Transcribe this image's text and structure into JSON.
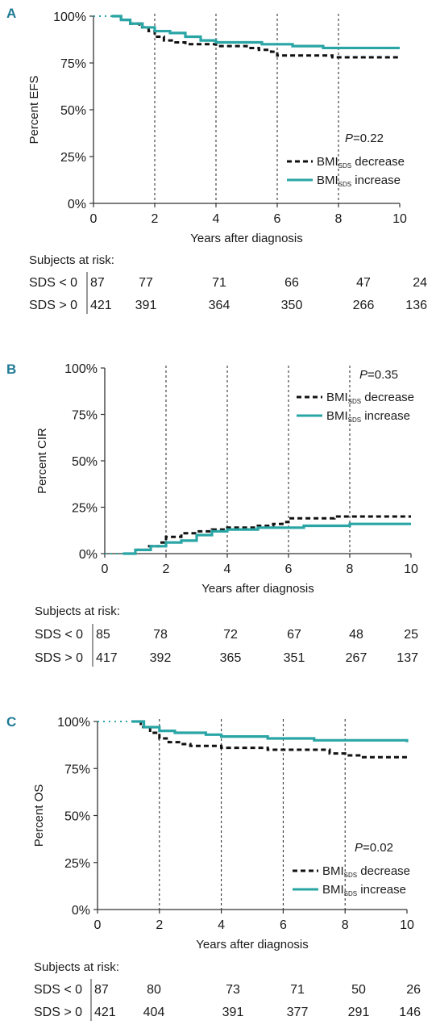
{
  "colors": {
    "decrease": "#111111",
    "increase": "#2aa5a5",
    "axis": "#333333"
  },
  "chart_data": [
    {
      "type": "line",
      "panel": "A",
      "ylabel": "Percent EFS",
      "xlabel": "Years after diagnosis",
      "xlim": [
        0,
        10
      ],
      "ylim": [
        0,
        100
      ],
      "xticks": [
        "0",
        "2",
        "4",
        "6",
        "8",
        "10"
      ],
      "yticks": [
        "0%",
        "25%",
        "50%",
        "75%",
        "100%"
      ],
      "vlines": [
        2,
        4,
        6,
        8
      ],
      "pvalue_label": "P",
      "pvalue_text": "=0.22",
      "legend_position": "lower-right",
      "series": [
        {
          "name": "BMI",
          "sub": "SDS",
          "suffix": " decrease",
          "style": "dashed",
          "x": [
            0.6,
            0.9,
            1.2,
            1.5,
            1.8,
            2.0,
            2.3,
            2.6,
            3.0,
            3.5,
            4.0,
            4.5,
            5.0,
            5.4,
            5.8,
            6.0,
            6.5,
            7.0,
            7.5,
            7.8,
            8.0,
            8.5,
            9.0,
            9.5,
            10.0
          ],
          "y": [
            100,
            98,
            96,
            94,
            92,
            89,
            87,
            86,
            85,
            85,
            84,
            84,
            83,
            82,
            81,
            79,
            79,
            79,
            79,
            78,
            78,
            78,
            78,
            78,
            78
          ]
        },
        {
          "name": "BMI",
          "sub": "SDS",
          "suffix": " increase",
          "style": "solid",
          "x": [
            0.6,
            0.9,
            1.2,
            1.6,
            2.0,
            2.5,
            3.0,
            3.5,
            4.0,
            4.5,
            5.0,
            5.5,
            6.0,
            6.5,
            7.0,
            7.5,
            8.0,
            8.5,
            9.0,
            9.5,
            10.0
          ],
          "y": [
            100,
            98,
            96,
            94,
            92,
            91,
            89,
            87,
            86,
            86,
            86,
            85,
            85,
            84,
            84,
            83,
            83,
            83,
            83,
            83,
            83
          ]
        }
      ],
      "risk_table": {
        "title": "Subjects at risk:",
        "rows": [
          {
            "label": "SDS < 0",
            "values": [
              "87",
              "77",
              "71",
              "66",
              "47",
              "24"
            ]
          },
          {
            "label": "SDS > 0",
            "values": [
              "421",
              "391",
              "364",
              "350",
              "266",
              "136"
            ]
          }
        ]
      }
    },
    {
      "type": "line",
      "panel": "B",
      "ylabel": "Percent CIR",
      "xlabel": "Years after diagnosis",
      "xlim": [
        0,
        10
      ],
      "ylim": [
        0,
        100
      ],
      "xticks": [
        "0",
        "2",
        "4",
        "6",
        "8",
        "10"
      ],
      "yticks": [
        "0%",
        "25%",
        "50%",
        "75%",
        "100%"
      ],
      "vlines": [
        2,
        4,
        6,
        8
      ],
      "pvalue_label": "P",
      "pvalue_text": "=0.35",
      "legend_position": "upper-right",
      "series": [
        {
          "name": "BMI",
          "sub": "SDS",
          "suffix": " decrease",
          "style": "dashed",
          "x": [
            0.6,
            1.0,
            1.4,
            1.8,
            2.0,
            2.5,
            3.0,
            3.5,
            4.0,
            4.5,
            5.0,
            5.5,
            5.8,
            6.0,
            6.5,
            7.0,
            7.5,
            8.0,
            8.5,
            9.0,
            9.5,
            10.0
          ],
          "y": [
            0,
            2,
            4,
            6,
            9,
            11,
            12,
            13,
            14,
            14,
            15,
            16,
            17,
            19,
            19,
            19,
            20,
            20,
            20,
            20,
            20,
            20
          ]
        },
        {
          "name": "BMI",
          "sub": "SDS",
          "suffix": " increase",
          "style": "solid",
          "x": [
            0.6,
            1.0,
            1.5,
            2.0,
            2.5,
            3.0,
            3.5,
            4.0,
            4.5,
            5.0,
            5.5,
            6.0,
            6.5,
            7.0,
            7.5,
            8.0,
            8.5,
            9.0,
            9.5,
            10.0
          ],
          "y": [
            0,
            2,
            4,
            6,
            7,
            10,
            12,
            13,
            13,
            14,
            14,
            14,
            15,
            15,
            15,
            16,
            16,
            16,
            16,
            16
          ]
        }
      ],
      "risk_table": {
        "title": "Subjects at risk:",
        "rows": [
          {
            "label": "SDS < 0",
            "values": [
              "85",
              "78",
              "72",
              "67",
              "48",
              "25"
            ]
          },
          {
            "label": "SDS > 0",
            "values": [
              "417",
              "392",
              "365",
              "351",
              "267",
              "137"
            ]
          }
        ]
      }
    },
    {
      "type": "line",
      "panel": "C",
      "ylabel": "Percent OS",
      "xlabel": "Years after diagnosis",
      "xlim": [
        0,
        10
      ],
      "ylim": [
        0,
        100
      ],
      "xticks": [
        "0",
        "2",
        "4",
        "6",
        "8",
        "10"
      ],
      "yticks": [
        "0%",
        "25%",
        "50%",
        "75%",
        "100%"
      ],
      "vlines": [
        2,
        4,
        6,
        8
      ],
      "pvalue_label": "P",
      "pvalue_text": "=0.02",
      "legend_position": "lower-right",
      "series": [
        {
          "name": "BMI",
          "sub": "SDS",
          "suffix": " decrease",
          "style": "dashed",
          "x": [
            1.1,
            1.4,
            1.7,
            2.0,
            2.3,
            2.7,
            3.0,
            3.5,
            4.0,
            4.5,
            5.0,
            5.5,
            6.0,
            6.5,
            7.0,
            7.5,
            8.0,
            8.5,
            9.0,
            9.5,
            10.0
          ],
          "y": [
            100,
            97,
            94,
            91,
            89,
            88,
            87,
            87,
            86,
            86,
            86,
            85,
            85,
            85,
            85,
            83,
            82,
            81,
            81,
            81,
            81
          ]
        },
        {
          "name": "BMI",
          "sub": "SDS",
          "suffix": " increase",
          "style": "solid",
          "x": [
            1.1,
            1.5,
            2.0,
            2.5,
            3.0,
            3.5,
            4.0,
            4.5,
            5.0,
            5.5,
            6.0,
            6.5,
            7.0,
            7.5,
            8.0,
            8.5,
            9.0,
            9.5,
            10.0
          ],
          "y": [
            100,
            97,
            95,
            94,
            94,
            93,
            92,
            92,
            92,
            91,
            91,
            91,
            90,
            90,
            90,
            90,
            90,
            90,
            89
          ]
        }
      ],
      "risk_table": {
        "title": "Subjects at risk:",
        "rows": [
          {
            "label": "SDS < 0",
            "values": [
              "87",
              "80",
              "73",
              "71",
              "50",
              "26"
            ]
          },
          {
            "label": "SDS > 0",
            "values": [
              "421",
              "404",
              "391",
              "377",
              "291",
              "146"
            ]
          }
        ]
      }
    }
  ]
}
